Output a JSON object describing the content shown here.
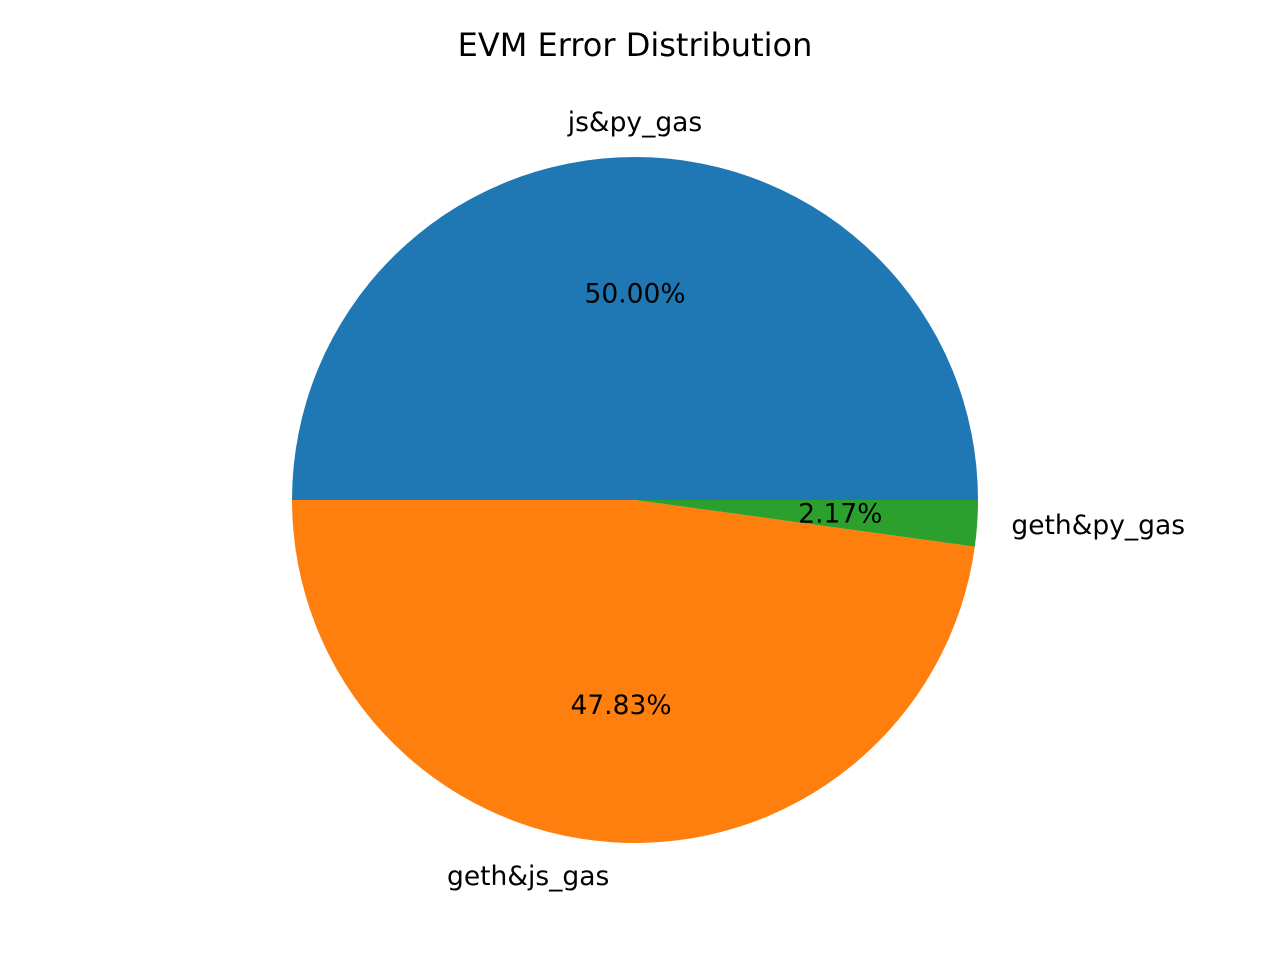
{
  "chart_data": {
    "type": "pie",
    "title": "EVM Error Distribution",
    "slices": [
      {
        "label": "js&py_gas",
        "value": 50.0,
        "pct_text": "50.00%",
        "color": "#1f77b4"
      },
      {
        "label": "geth&js_gas",
        "value": 47.83,
        "pct_text": "47.83%",
        "color": "#ff7f0e"
      },
      {
        "label": "geth&py_gas",
        "value": 2.17,
        "pct_text": "2.17%",
        "color": "#2ca02c"
      }
    ],
    "start_angle_deg": 0,
    "direction": "counterclockwise"
  }
}
